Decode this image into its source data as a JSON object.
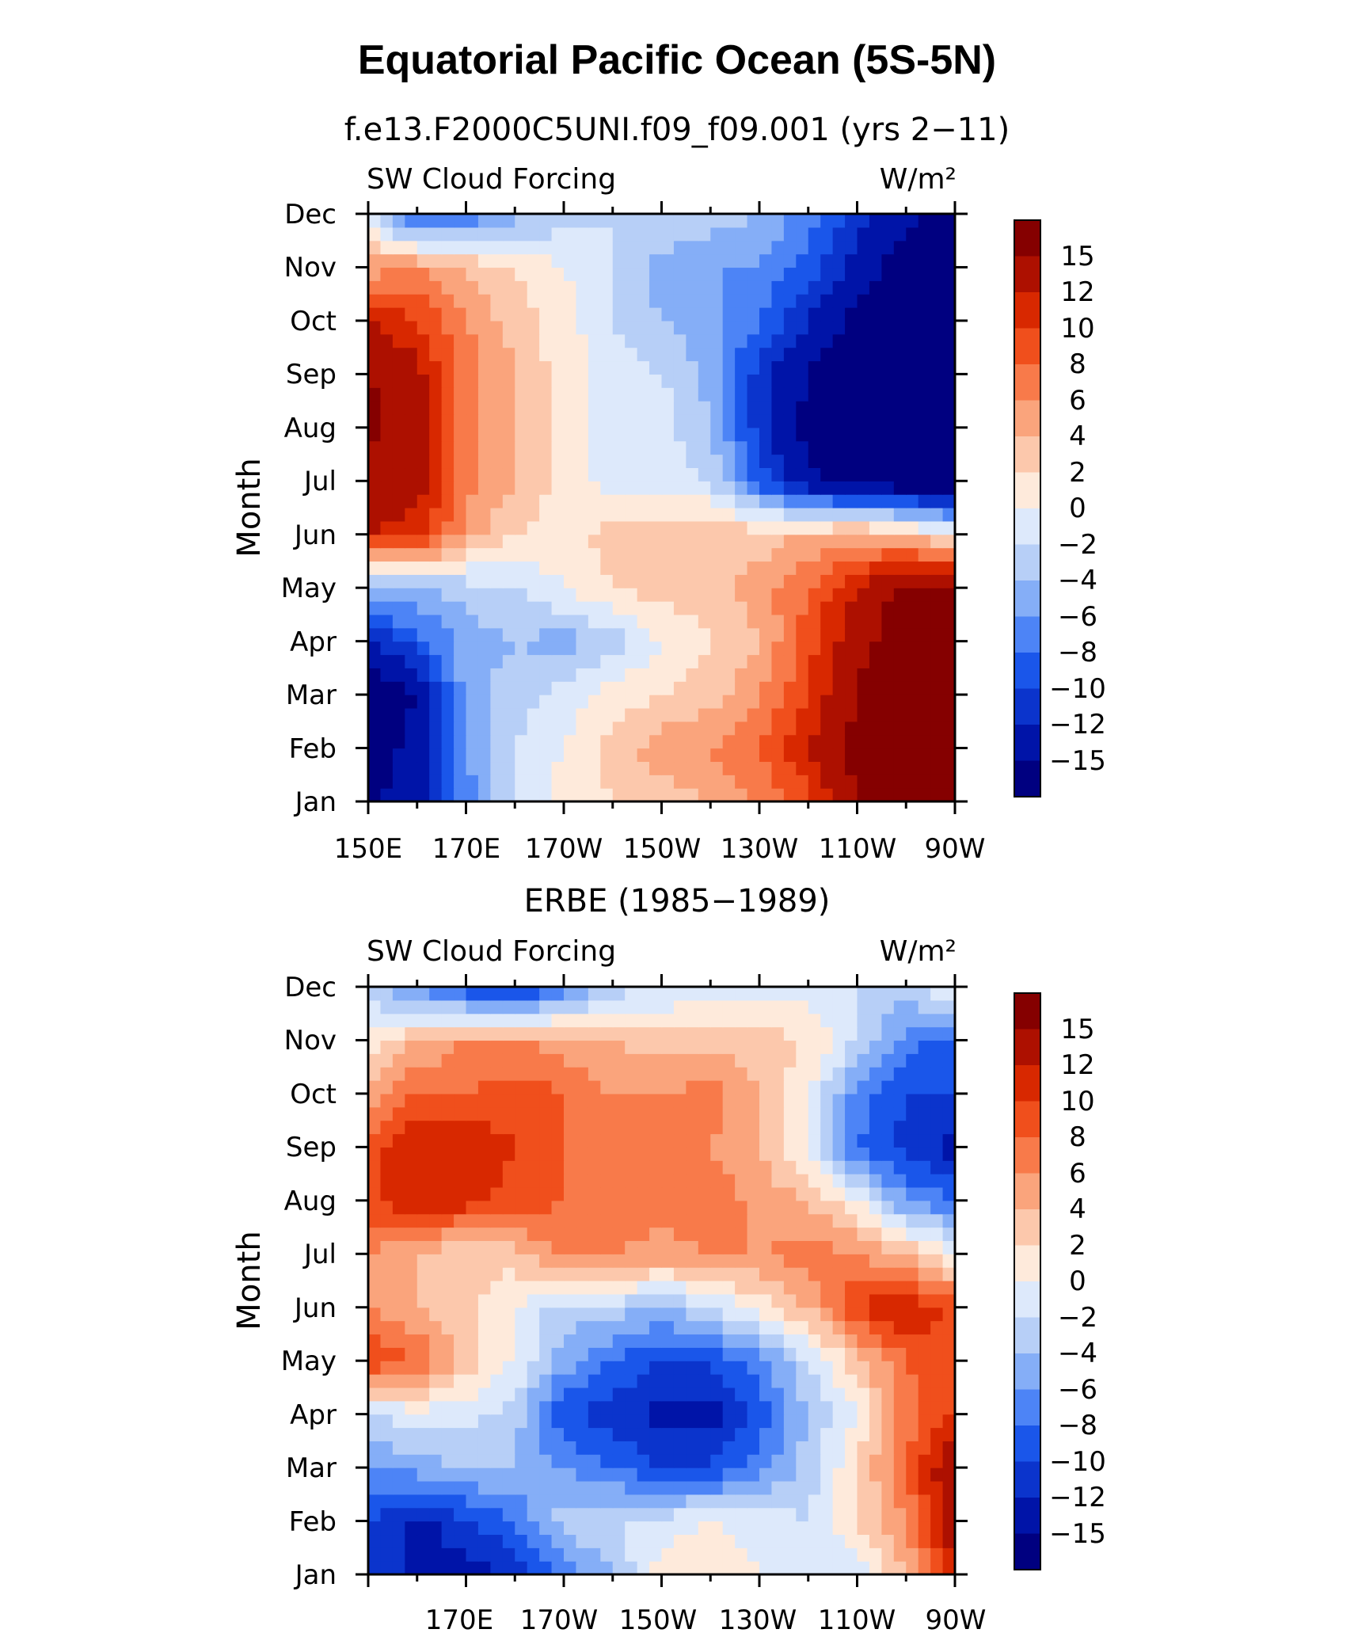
{
  "page": {
    "title": "Equatorial Pacific Ocean (5S-5N)"
  },
  "palette": {
    "levels": [
      -15,
      -12,
      -10,
      -8,
      -6,
      -4,
      -2,
      0,
      2,
      4,
      6,
      8,
      10,
      12,
      15
    ],
    "colors": [
      "#000080",
      "#0014a8",
      "#0b34cc",
      "#1a56ea",
      "#4d84f6",
      "#85aef7",
      "#b7cff7",
      "#dde9fb",
      "#feeadb",
      "#fcc8ac",
      "#faa47c",
      "#f87a4a",
      "#f04f1c",
      "#d82800",
      "#ad1000",
      "#850000"
    ]
  },
  "chart_data": [
    {
      "type": "heatmap",
      "title": "f.e13.F2000C5UNI.f09_f09.001 (yrs 2−11)",
      "left_string": "SW Cloud Forcing",
      "units": "W/m²",
      "ylabel": "Month",
      "xlabel": "",
      "x_tick_labels": [
        "150E",
        "170E",
        "170W",
        "150W",
        "130W",
        "110W",
        "90W"
      ],
      "y_tick_labels": [
        "Jan",
        "Feb",
        "Mar",
        "Apr",
        "May",
        "Jun",
        "Jul",
        "Aug",
        "Sep",
        "Oct",
        "Nov",
        "Dec"
      ],
      "colorbar_labels": [
        "15",
        "12",
        "10",
        "8",
        "6",
        "4",
        "2",
        "0",
        "−2",
        "−4",
        "−6",
        "−8",
        "−10",
        "−12",
        "−15"
      ],
      "x_range_deg_east": [
        150,
        270
      ],
      "y_range_month": [
        1,
        12
      ],
      "lon_grid_deg_east": [
        150,
        160,
        170,
        180,
        190,
        200,
        210,
        220,
        230,
        240,
        250,
        260,
        270
      ],
      "month_grid": [
        "Jan",
        "Feb",
        "Mar",
        "Apr",
        "May",
        "Jun",
        "Jul",
        "Aug",
        "Sep",
        "Oct",
        "Nov",
        "Dec"
      ],
      "values": [
        [
          -16,
          -13,
          -7,
          -2,
          1,
          2,
          3,
          4,
          6,
          9,
          15,
          17,
          18
        ],
        [
          -17,
          -14,
          -6,
          -2,
          0,
          3,
          5,
          6,
          8,
          12,
          16,
          18,
          18
        ],
        [
          -18,
          -15,
          -5,
          -3,
          -1,
          1,
          2,
          3,
          6,
          10,
          15,
          18,
          18
        ],
        [
          -12,
          -9,
          -5,
          -4,
          -5,
          -3,
          0,
          2,
          4,
          9,
          14,
          17,
          18
        ],
        [
          -4,
          -4,
          -3,
          -2,
          0,
          2,
          3,
          3,
          5,
          8,
          12,
          16,
          17
        ],
        [
          12,
          11,
          5,
          2,
          1,
          3,
          3,
          4,
          3,
          4,
          5,
          4,
          0
        ],
        [
          14,
          13,
          7,
          4,
          1,
          -1,
          -1,
          -2,
          -9,
          -14,
          -17,
          -18,
          -18
        ],
        [
          16,
          13,
          7,
          4,
          1,
          -1,
          -1,
          -4,
          -11,
          -16,
          -18,
          -18,
          -18
        ],
        [
          15,
          13,
          7,
          4,
          1,
          -1,
          -2,
          -5,
          -11,
          -15,
          -18,
          -18,
          -18
        ],
        [
          12,
          10,
          6,
          3,
          1,
          -2,
          -4,
          -5,
          -8,
          -12,
          -16,
          -18,
          -18
        ],
        [
          5,
          6,
          4,
          2,
          0,
          -2,
          -5,
          -6,
          -6,
          -9,
          -13,
          -17,
          -18
        ],
        [
          -1,
          -10,
          -8,
          -5,
          -3,
          -2,
          -2,
          -3,
          -4,
          -7,
          -11,
          -14,
          -16
        ]
      ]
    },
    {
      "type": "heatmap",
      "title": "ERBE (1985−1989)",
      "left_string": "SW Cloud Forcing",
      "units": "W/m²",
      "ylabel": "Month",
      "xlabel": "",
      "x_tick_labels": [
        "170E",
        "170W",
        "150W",
        "130W",
        "110W",
        "90W"
      ],
      "y_tick_labels": [
        "Jan",
        "Feb",
        "Mar",
        "Apr",
        "May",
        "Jun",
        "Jul",
        "Aug",
        "Sep",
        "Oct",
        "Nov",
        "Dec"
      ],
      "colorbar_labels": [
        "15",
        "12",
        "10",
        "8",
        "6",
        "4",
        "2",
        "0",
        "−2",
        "−4",
        "−6",
        "−8",
        "−10",
        "−12",
        "−15"
      ],
      "x_range_deg_east": [
        150,
        270
      ],
      "y_range_month": [
        1,
        12
      ],
      "lon_grid_deg_east": [
        150,
        160,
        170,
        180,
        190,
        200,
        210,
        220,
        230,
        240,
        250,
        260,
        270
      ],
      "month_grid": [
        "Jan",
        "Feb",
        "Mar",
        "Apr",
        "May",
        "Jun",
        "Jul",
        "Aug",
        "Sep",
        "Oct",
        "Nov",
        "Dec"
      ],
      "values": [
        [
          -10,
          -13,
          -13,
          -12,
          -7,
          -4,
          1,
          2,
          0,
          -2,
          -2,
          4,
          12
        ],
        [
          -10,
          -13,
          -10,
          -8,
          -3,
          -2,
          -1,
          0,
          -1,
          -2,
          2,
          6,
          14
        ],
        [
          -6,
          -5,
          -4,
          -4,
          -6,
          -8,
          -10,
          -10,
          -7,
          -3,
          2,
          8,
          15
        ],
        [
          -2,
          -1,
          -1,
          -3,
          -10,
          -11,
          -13,
          -13,
          -9,
          -4,
          0,
          7,
          10
        ],
        [
          10,
          8,
          3,
          0,
          -5,
          -8,
          -10,
          -10,
          -7,
          -2,
          3,
          8,
          10
        ],
        [
          6,
          4,
          3,
          0,
          -3,
          -3,
          -4,
          -2,
          1,
          4,
          10,
          12,
          9
        ],
        [
          6,
          4,
          2,
          3,
          7,
          6,
          5,
          6,
          6,
          7,
          6,
          4,
          0
        ],
        [
          9,
          12,
          11,
          9,
          8,
          8,
          7,
          8,
          5,
          4,
          0,
          -6,
          -8
        ],
        [
          9,
          12,
          12,
          10,
          8,
          7,
          7,
          6,
          4,
          0,
          -8,
          -11,
          -13
        ],
        [
          5,
          8,
          8,
          9,
          8,
          6,
          6,
          7,
          4,
          0,
          -7,
          -10,
          -10
        ],
        [
          0,
          4,
          6,
          6,
          5,
          4,
          3,
          3,
          3,
          2,
          -2,
          -7,
          -9
        ],
        [
          -3,
          -7,
          -10,
          -12,
          -8,
          -3,
          -2,
          -1,
          -1,
          -1,
          -2,
          -3,
          1
        ]
      ]
    }
  ]
}
